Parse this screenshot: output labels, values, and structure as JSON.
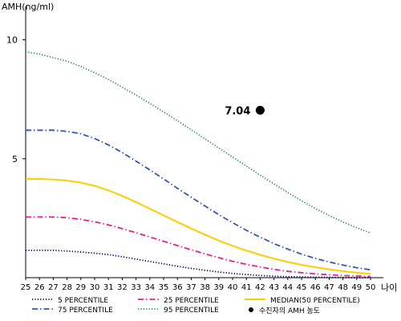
{
  "chart_data": {
    "type": "line",
    "ylabel": "AMH(ng/ml)",
    "xlabel": "나이",
    "ylim": [
      0,
      11
    ],
    "xlim": [
      25,
      50
    ],
    "y_ticks": [
      5,
      10
    ],
    "x": [
      25,
      26,
      27,
      28,
      29,
      30,
      31,
      32,
      33,
      34,
      35,
      36,
      37,
      38,
      39,
      40,
      41,
      42,
      43,
      44,
      45,
      46,
      47,
      48,
      49,
      50
    ],
    "series": [
      {
        "name": "5 PERCENTILE",
        "color": "#000066",
        "style": "dotted",
        "values": [
          1.15,
          1.15,
          1.15,
          1.12,
          1.08,
          1.03,
          0.97,
          0.88,
          0.78,
          0.68,
          0.58,
          0.48,
          0.39,
          0.31,
          0.24,
          0.18,
          0.13,
          0.09,
          0.06,
          0.04,
          0.03,
          0.02,
          0.01,
          0.01,
          0.0,
          0.0
        ]
      },
      {
        "name": "25 PERCENTILE",
        "color": "#e0209a",
        "style": "dashdot",
        "values": [
          2.55,
          2.55,
          2.55,
          2.52,
          2.45,
          2.35,
          2.22,
          2.06,
          1.89,
          1.71,
          1.53,
          1.35,
          1.17,
          1.0,
          0.84,
          0.69,
          0.56,
          0.45,
          0.35,
          0.27,
          0.21,
          0.16,
          0.12,
          0.09,
          0.07,
          0.05
        ]
      },
      {
        "name": "MEDIAN(50 PERCENTILE)",
        "color": "#ffcc00",
        "style": "solid",
        "values": [
          4.15,
          4.15,
          4.13,
          4.08,
          4.0,
          3.86,
          3.67,
          3.44,
          3.18,
          2.9,
          2.62,
          2.34,
          2.07,
          1.81,
          1.56,
          1.34,
          1.14,
          0.96,
          0.8,
          0.66,
          0.54,
          0.44,
          0.35,
          0.27,
          0.21,
          0.16
        ]
      },
      {
        "name": "75 PERCENTILE",
        "color": "#3355bb",
        "style": "dashdot",
        "values": [
          6.2,
          6.2,
          6.2,
          6.15,
          6.05,
          5.85,
          5.58,
          5.26,
          4.9,
          4.53,
          4.15,
          3.76,
          3.38,
          3.01,
          2.65,
          2.31,
          1.99,
          1.7,
          1.43,
          1.2,
          0.99,
          0.81,
          0.66,
          0.53,
          0.42,
          0.33
        ]
      },
      {
        "name": "95 PERCENTILE",
        "color": "#2a8a5a",
        "style": "dotted",
        "values": [
          9.5,
          9.4,
          9.25,
          9.1,
          8.88,
          8.62,
          8.33,
          8.01,
          7.68,
          7.33,
          6.97,
          6.6,
          6.22,
          5.84,
          5.45,
          5.07,
          4.69,
          4.31,
          3.94,
          3.58,
          3.23,
          2.91,
          2.61,
          2.34,
          2.1,
          1.88
        ]
      }
    ],
    "point": {
      "label": "7.04",
      "x": 42,
      "y": 7.04,
      "legend": "수진자의 AMH 농도",
      "color": "#000000"
    }
  }
}
